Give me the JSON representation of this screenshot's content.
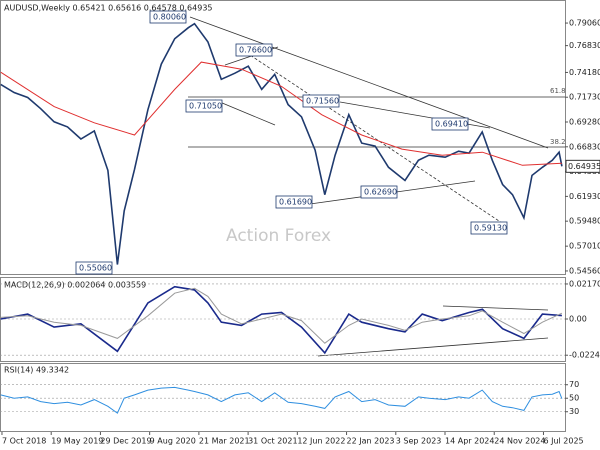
{
  "chart_data": [
    {
      "type": "line",
      "title": "AUDUSD,Weekly  0.65421 0.65616 0.64578 0.64935",
      "xlim": [
        "2018-09-28",
        "2025-10-12"
      ],
      "ylim": [
        0.5416,
        0.8124
      ],
      "yticks": [
        {
          "value": 0.7906,
          "label": "0.79060"
        },
        {
          "value": 0.7683,
          "label": "0.76830"
        },
        {
          "value": 0.7418,
          "label": "0.74180"
        },
        {
          "value": 0.7173,
          "label": "0.71730"
        },
        {
          "value": 0.6928,
          "label": "0.69280"
        },
        {
          "value": 0.6683,
          "label": "0.66830"
        },
        {
          "value": 0.6438,
          "label": "0.64380"
        },
        {
          "value": 0.6193,
          "label": "0.61930"
        },
        {
          "value": 0.5948,
          "label": "0.59480"
        },
        {
          "value": 0.5701,
          "label": "0.57010"
        },
        {
          "value": 0.5456,
          "label": "0.54560"
        }
      ],
      "xticks": [
        {
          "value": "2018-10-07",
          "label": "7 Oct 2018"
        },
        {
          "value": "2019-05-19",
          "label": "19 May 2019"
        },
        {
          "value": "2019-12-29",
          "label": "29 Dec 2019"
        },
        {
          "value": "2020-08-09",
          "label": "9 Aug 2020"
        },
        {
          "value": "2021-03-21",
          "label": "21 Mar 2021"
        },
        {
          "value": "2021-10-31",
          "label": "31 Oct 2021"
        },
        {
          "value": "2022-06-12",
          "label": "12 Jun 2022"
        },
        {
          "value": "2023-01-22",
          "label": "22 Jan 2023"
        },
        {
          "value": "2023-09-03",
          "label": "3 Sep 2023"
        },
        {
          "value": "2024-04-14",
          "label": "14 Apr 2024"
        },
        {
          "value": "2024-11-24",
          "label": "24 Nov 2024"
        },
        {
          "value": "2025-07-06",
          "label": "6 Jul 2025"
        }
      ],
      "series": [
        {
          "color": "#1f3a6e",
          "x": [
            "2018-10-01",
            "2018-12-01",
            "2019-02-01",
            "2019-04-01",
            "2019-06-01",
            "2019-08-01",
            "2019-10-01",
            "2019-12-01",
            "2020-02-01",
            "2020-03-15",
            "2020-04-15",
            "2020-06-01",
            "2020-08-01",
            "2020-10-01",
            "2020-12-01",
            "2021-02-01",
            "2021-03-01",
            "2021-05-01",
            "2021-07-01",
            "2021-09-01",
            "2021-11-01",
            "2022-01-01",
            "2022-03-01",
            "2022-05-01",
            "2022-07-01",
            "2022-09-01",
            "2022-10-15",
            "2022-12-01",
            "2023-02-01",
            "2023-04-01",
            "2023-06-01",
            "2023-08-01",
            "2023-10-15",
            "2023-12-15",
            "2024-02-01",
            "2024-04-15",
            "2024-06-15",
            "2024-08-01",
            "2024-09-30",
            "2024-11-15",
            "2025-01-01",
            "2025-02-15",
            "2025-04-08",
            "2025-05-15",
            "2025-07-01",
            "2025-08-15",
            "2025-09-15",
            "2025-09-28"
          ],
          "values": [
            0.73,
            0.722,
            0.717,
            0.706,
            0.693,
            0.688,
            0.676,
            0.684,
            0.645,
            0.552,
            0.605,
            0.646,
            0.705,
            0.75,
            0.775,
            0.786,
            0.79,
            0.772,
            0.735,
            0.741,
            0.748,
            0.725,
            0.74,
            0.71,
            0.698,
            0.665,
            0.621,
            0.66,
            0.7,
            0.672,
            0.669,
            0.648,
            0.635,
            0.655,
            0.66,
            0.658,
            0.664,
            0.662,
            0.683,
            0.655,
            0.631,
            0.621,
            0.598,
            0.64,
            0.648,
            0.655,
            0.663,
            0.649
          ]
        },
        {
          "color": "#e03030",
          "x": [
            "2018-10-01",
            "2019-06-01",
            "2019-12-01",
            "2020-06-01",
            "2020-12-01",
            "2021-04-01",
            "2021-10-01",
            "2022-04-01",
            "2022-10-01",
            "2023-04-01",
            "2023-10-01",
            "2024-04-01",
            "2024-10-01",
            "2025-04-01",
            "2025-09-28"
          ],
          "values": [
            0.742,
            0.708,
            0.692,
            0.68,
            0.725,
            0.752,
            0.745,
            0.728,
            0.7,
            0.68,
            0.666,
            0.66,
            0.663,
            0.65,
            0.652
          ]
        }
      ],
      "annotations": [
        "0.80060",
        "0.76600",
        "0.71050",
        "0.71560",
        "0.69410",
        "0.61690",
        "0.62690",
        "0.59130",
        "0.55060"
      ],
      "last_price": "0.64935",
      "fib_labels": [
        "61.8",
        "38.2"
      ],
      "watermark": "Action Forex",
      "grid": false
    },
    {
      "type": "line",
      "title": "MACD(12,26,9) 0.002064 0.003559",
      "xlim": [
        "2018-09-28",
        "2025-10-12"
      ],
      "ylim": [
        -0.02665,
        0.0254
      ],
      "yticks": [
        0.021704,
        {
          "value": 0,
          "label": "0.00"
        },
        -0.022445
      ],
      "series": [
        {
          "color": "#1a2a8c",
          "x": [
            "2018-10-01",
            "2019-02-01",
            "2019-06-01",
            "2019-10-01",
            "2020-03-15",
            "2020-08-01",
            "2020-12-01",
            "2021-03-01",
            "2021-05-01",
            "2021-07-01",
            "2021-10-01",
            "2022-01-01",
            "2022-04-01",
            "2022-07-01",
            "2022-10-15",
            "2023-02-01",
            "2023-04-01",
            "2023-08-01",
            "2023-10-15",
            "2024-01-01",
            "2024-04-01",
            "2024-08-01",
            "2024-10-01",
            "2025-01-01",
            "2025-04-08",
            "2025-07-01",
            "2025-09-28"
          ],
          "values": [
            0.0,
            0.003,
            -0.005,
            -0.003,
            -0.02,
            0.01,
            0.02,
            0.018,
            0.01,
            -0.002,
            -0.004,
            0.003,
            0.004,
            -0.005,
            -0.021,
            0.003,
            -0.002,
            -0.006,
            -0.008,
            0.003,
            -0.001,
            0.004,
            0.006,
            -0.006,
            -0.012,
            0.003,
            0.0021
          ]
        },
        {
          "color": "#9a9a9a",
          "x": [
            "2018-10-01",
            "2019-02-01",
            "2019-06-01",
            "2019-10-01",
            "2020-03-15",
            "2020-08-01",
            "2020-12-01",
            "2021-03-01",
            "2021-05-01",
            "2021-07-01",
            "2021-10-01",
            "2022-01-01",
            "2022-04-01",
            "2022-07-01",
            "2022-10-15",
            "2023-02-01",
            "2023-04-01",
            "2023-08-01",
            "2023-10-15",
            "2024-01-01",
            "2024-04-01",
            "2024-08-01",
            "2024-10-01",
            "2025-01-01",
            "2025-04-08",
            "2025-07-01",
            "2025-09-28"
          ],
          "values": [
            0.001,
            0.002,
            -0.002,
            -0.004,
            -0.012,
            0.002,
            0.016,
            0.019,
            0.014,
            0.003,
            -0.003,
            0.0,
            0.003,
            -0.001,
            -0.015,
            -0.004,
            0.0,
            -0.004,
            -0.007,
            -0.002,
            0.0,
            0.002,
            0.005,
            -0.002,
            -0.009,
            -0.002,
            0.0036
          ]
        }
      ],
      "grid": true
    },
    {
      "type": "line",
      "title": "RSI(14) 49.3342",
      "xlim": [
        "2018-09-28",
        "2025-10-12"
      ],
      "ylim": [
        0,
        100.7
      ],
      "yticks": [
        70,
        50,
        30
      ],
      "series": [
        {
          "color": "#2f8fe0",
          "x": [
            "2018-10-01",
            "2018-12-01",
            "2019-02-01",
            "2019-04-01",
            "2019-06-01",
            "2019-08-01",
            "2019-10-01",
            "2019-12-01",
            "2020-02-01",
            "2020-03-15",
            "2020-04-15",
            "2020-06-01",
            "2020-08-01",
            "2020-10-01",
            "2020-12-01",
            "2021-02-01",
            "2021-03-01",
            "2021-05-01",
            "2021-07-01",
            "2021-09-01",
            "2021-11-01",
            "2022-01-01",
            "2022-03-01",
            "2022-05-01",
            "2022-07-01",
            "2022-09-01",
            "2022-10-15",
            "2022-12-01",
            "2023-02-01",
            "2023-04-01",
            "2023-06-01",
            "2023-08-01",
            "2023-10-15",
            "2023-12-15",
            "2024-02-01",
            "2024-04-15",
            "2024-06-15",
            "2024-08-01",
            "2024-09-30",
            "2024-11-15",
            "2025-01-01",
            "2025-02-15",
            "2025-04-08",
            "2025-05-15",
            "2025-07-01",
            "2025-08-15",
            "2025-09-15",
            "2025-09-28"
          ],
          "values": [
            55,
            50,
            52,
            45,
            42,
            44,
            40,
            48,
            38,
            28,
            50,
            55,
            62,
            65,
            66,
            62,
            60,
            55,
            45,
            55,
            58,
            45,
            58,
            44,
            42,
            38,
            35,
            52,
            60,
            45,
            48,
            40,
            38,
            52,
            50,
            48,
            52,
            50,
            62,
            45,
            38,
            36,
            32,
            52,
            55,
            56,
            60,
            49.3
          ]
        }
      ],
      "grid": true
    }
  ]
}
